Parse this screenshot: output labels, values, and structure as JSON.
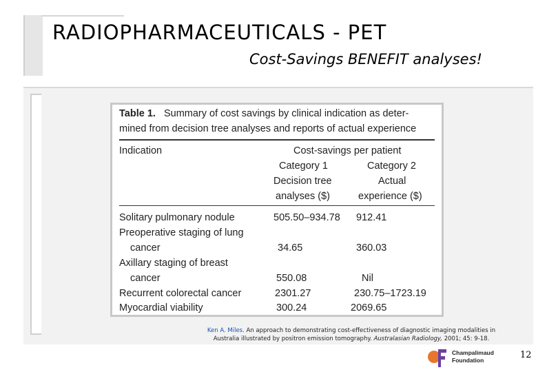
{
  "slide": {
    "title": "RADIOPHARMACEUTICALS - PET",
    "subtitle": "Cost-Savings BENEFIT analyses!",
    "page_number": "12"
  },
  "table": {
    "caption_label": "Table 1.",
    "caption_line1": "Summary of cost savings by clinical indication as deter-",
    "caption_line2": "mined from decision tree analyses and reports of actual experience",
    "header_indication": "Indication",
    "header_group": "Cost-savings per patient",
    "header_cat1": "Category 1",
    "header_cat2": "Category 2",
    "header_cat1_sub1": "Decision tree",
    "header_cat2_sub1": "Actual",
    "header_cat1_sub2": "analyses ($)",
    "header_cat2_sub2": "experience ($)",
    "rows": [
      {
        "indication": "Solitary pulmonary nodule",
        "cat1": "505.50–934.78",
        "cat2": "912.41"
      },
      {
        "indication": "Preoperative staging of lung",
        "indication_cont": "cancer",
        "cat1": "34.65",
        "cat2": "360.03"
      },
      {
        "indication": "Axillary staging of breast",
        "indication_cont": "cancer",
        "cat1": "550.08",
        "cat2": "Nil"
      },
      {
        "indication": "Recurrent colorectal cancer",
        "cat1": "2301.27",
        "cat2": "230.75–1723.19"
      },
      {
        "indication": "Myocardial viability",
        "cat1": "300.24",
        "cat2": "2069.65"
      }
    ]
  },
  "citation": {
    "author": "Ken A. Miles.",
    "text_1": " An approach to demonstrating cost-effectiveness of diagnostic imaging modalities in",
    "text_2": "Australia illustrated by positron emission tomography. ",
    "journal": "Australasian Radiology,",
    "text_3": " 2001; 45: 9-18."
  },
  "logo": {
    "line1": "Champalimaud",
    "line2": "Foundation",
    "colors": {
      "orange": "#e8772e",
      "purple": "#6b3fa0"
    }
  }
}
